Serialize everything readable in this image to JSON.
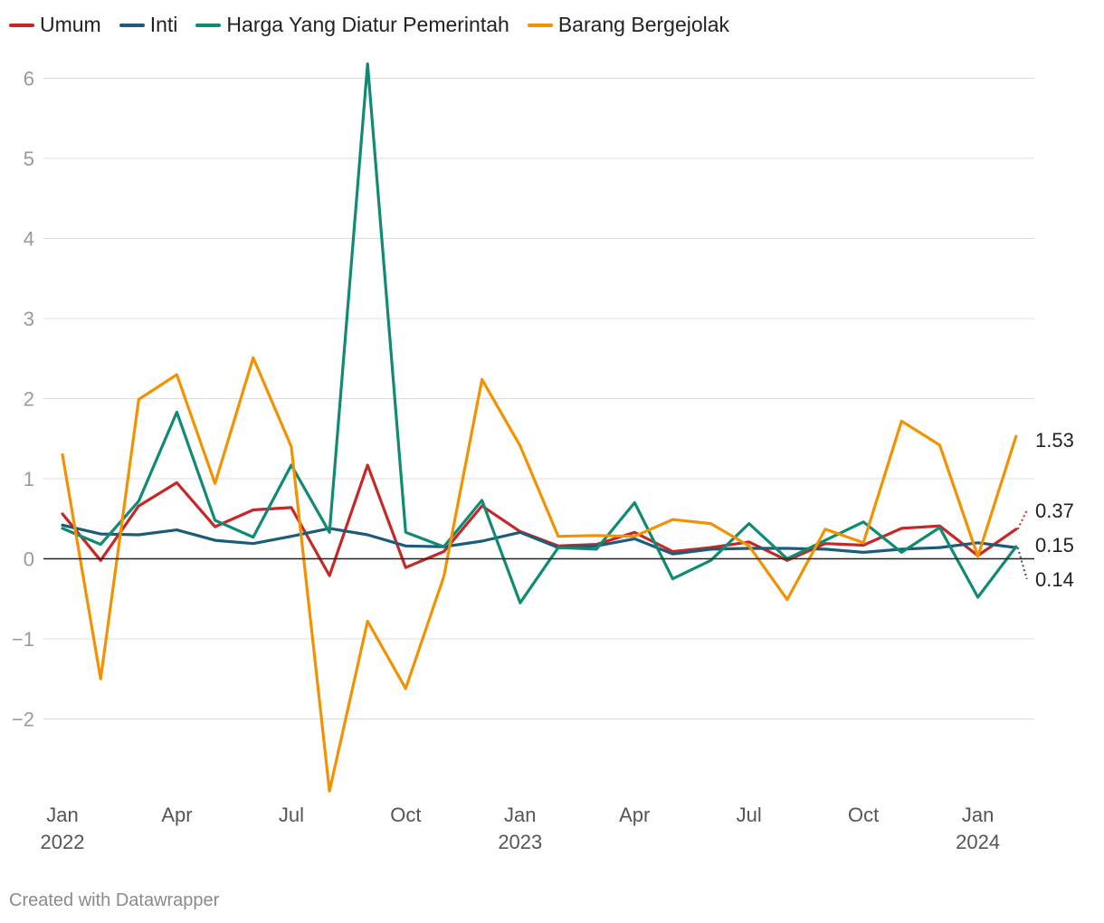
{
  "credit": "Created with Datawrapper",
  "chart_data": {
    "type": "line",
    "title": "",
    "xlabel": "",
    "ylabel": "",
    "ylim": [
      -2.9,
      6.2
    ],
    "yticks": [
      6,
      5,
      4,
      3,
      2,
      1,
      0,
      -1,
      -2
    ],
    "ytick_labels": [
      "6",
      "5",
      "4",
      "3",
      "2",
      "1",
      "0",
      "−1",
      "−2"
    ],
    "grid": true,
    "legend_position": "top-left",
    "x": [
      "2022-01",
      "2022-02",
      "2022-03",
      "2022-04",
      "2022-05",
      "2022-06",
      "2022-07",
      "2022-08",
      "2022-09",
      "2022-10",
      "2022-11",
      "2022-12",
      "2023-01",
      "2023-02",
      "2023-03",
      "2023-04",
      "2023-05",
      "2023-06",
      "2023-07",
      "2023-08",
      "2023-09",
      "2023-10",
      "2023-11",
      "2023-12",
      "2024-01",
      "2024-02"
    ],
    "xticks": [
      {
        "x": "2022-01",
        "label": "Jan",
        "year": "2022"
      },
      {
        "x": "2022-04",
        "label": "Apr",
        "year": ""
      },
      {
        "x": "2022-07",
        "label": "Jul",
        "year": ""
      },
      {
        "x": "2022-10",
        "label": "Oct",
        "year": ""
      },
      {
        "x": "2023-01",
        "label": "Jan",
        "year": "2023"
      },
      {
        "x": "2023-04",
        "label": "Apr",
        "year": ""
      },
      {
        "x": "2023-07",
        "label": "Jul",
        "year": ""
      },
      {
        "x": "2023-10",
        "label": "Oct",
        "year": ""
      },
      {
        "x": "2024-01",
        "label": "Jan",
        "year": "2024"
      }
    ],
    "series": [
      {
        "name": "Umum",
        "color": "#c62828",
        "end_label": "0.37",
        "values": [
          0.56,
          -0.02,
          0.66,
          0.95,
          0.4,
          0.61,
          0.64,
          -0.21,
          1.17,
          -0.11,
          0.09,
          0.66,
          0.34,
          0.16,
          0.18,
          0.33,
          0.09,
          0.14,
          0.21,
          -0.02,
          0.19,
          0.17,
          0.38,
          0.41,
          0.04,
          0.37
        ]
      },
      {
        "name": "Inti",
        "color": "#1b5c7a",
        "end_label": "0.14",
        "values": [
          0.42,
          0.31,
          0.3,
          0.36,
          0.23,
          0.19,
          0.28,
          0.38,
          0.3,
          0.16,
          0.15,
          0.22,
          0.33,
          0.14,
          0.16,
          0.25,
          0.06,
          0.12,
          0.13,
          0.13,
          0.12,
          0.08,
          0.12,
          0.14,
          0.2,
          0.14
        ]
      },
      {
        "name": "Harga Yang Diatur Pemerintah",
        "color": "#0f8b73",
        "end_label": "0.15",
        "values": [
          0.38,
          0.18,
          0.72,
          1.83,
          0.48,
          0.27,
          1.17,
          0.33,
          6.18,
          0.33,
          0.15,
          0.73,
          -0.55,
          0.14,
          0.12,
          0.7,
          -0.25,
          -0.02,
          0.44,
          0.0,
          0.23,
          0.46,
          0.08,
          0.39,
          -0.48,
          0.15
        ]
      },
      {
        "name": "Barang Bergejolak",
        "color": "#f39200",
        "end_label": "1.53",
        "values": [
          1.3,
          -1.5,
          1.99,
          2.3,
          0.94,
          2.51,
          1.4,
          -2.9,
          -0.78,
          -1.62,
          -0.22,
          2.24,
          1.41,
          0.28,
          0.29,
          0.28,
          0.49,
          0.44,
          0.16,
          -0.51,
          0.37,
          0.2,
          1.72,
          1.42,
          0.03,
          1.53
        ]
      }
    ]
  }
}
